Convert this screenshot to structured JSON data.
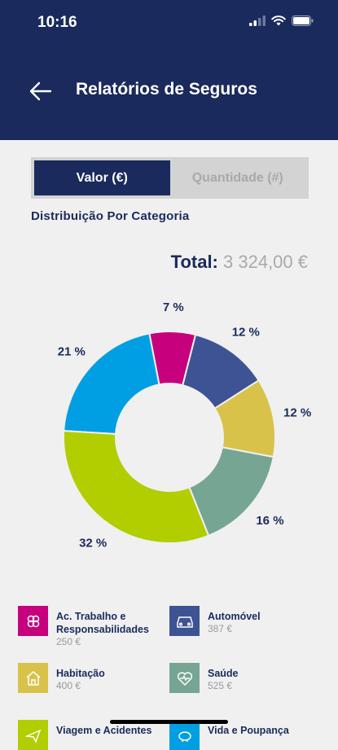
{
  "status_bar": {
    "time": "10:16"
  },
  "header": {
    "title": "Relatórios de Seguros"
  },
  "toggle": {
    "options": [
      "Valor (€)",
      "Quantidade (#)"
    ],
    "active": 0
  },
  "section_title": "Distribuição Por Categoria",
  "total": {
    "label": "Total:",
    "value": "3 324,00 €"
  },
  "chart_data": {
    "type": "pie",
    "variant": "donut",
    "slices": [
      {
        "name": "Vida e Poupança",
        "percent": 21,
        "label": "21 %",
        "color": "#009fe3"
      },
      {
        "name": "Ac. Trabalho e Responsabilidades",
        "percent": 7,
        "label": "7 %",
        "color": "#c7007d"
      },
      {
        "name": "Automóvel",
        "percent": 12,
        "label": "12 %",
        "color": "#3d5393"
      },
      {
        "name": "Habitação",
        "percent": 12,
        "label": "12 %",
        "color": "#d8c24a"
      },
      {
        "name": "Saúde",
        "percent": 16,
        "label": "16 %",
        "color": "#76a593"
      },
      {
        "name": "Viagem e Acidentes",
        "percent": 32,
        "label": "32 %",
        "color": "#b2cd00"
      }
    ]
  },
  "legend": [
    {
      "name": "Ac. Trabalho e Responsabilidades",
      "amount": "250 €",
      "color": "#c7007d",
      "icon": "heart-cross-icon"
    },
    {
      "name": "Automóvel",
      "amount": "387 €",
      "color": "#3d5393",
      "icon": "car-icon"
    },
    {
      "name": "Habitação",
      "amount": "400 €",
      "color": "#d8c24a",
      "icon": "house-icon"
    },
    {
      "name": "Saúde",
      "amount": "525 €",
      "color": "#76a593",
      "icon": "health-heart-icon"
    },
    {
      "name": "Viagem e Acidentes",
      "amount": "",
      "color": "#b2cd00",
      "icon": "plane-icon"
    },
    {
      "name": "Vida e Poupança",
      "amount": "",
      "color": "#009fe3",
      "icon": "piggy-bank-icon"
    }
  ]
}
